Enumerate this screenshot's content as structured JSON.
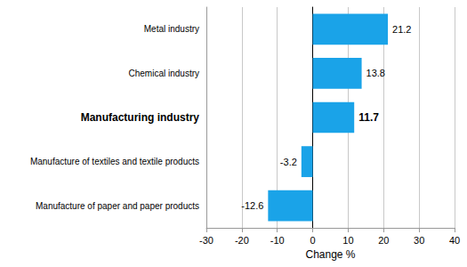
{
  "chart_data": {
    "type": "bar",
    "orientation": "horizontal",
    "x_label": "Change %",
    "categories": [
      "Metal industry",
      "Chemical industry",
      "Manufacturing industry",
      "Manufacture of textiles and textile products",
      "Manufacture of paper and paper products"
    ],
    "values": [
      21.2,
      13.8,
      11.7,
      -3.2,
      -12.6
    ],
    "color": "#1aa3e8",
    "xlim": [
      -30,
      40
    ],
    "xticks": [
      -30,
      -20,
      -10,
      0,
      10,
      20,
      30,
      40
    ],
    "grid": true,
    "data_labels": true
  }
}
